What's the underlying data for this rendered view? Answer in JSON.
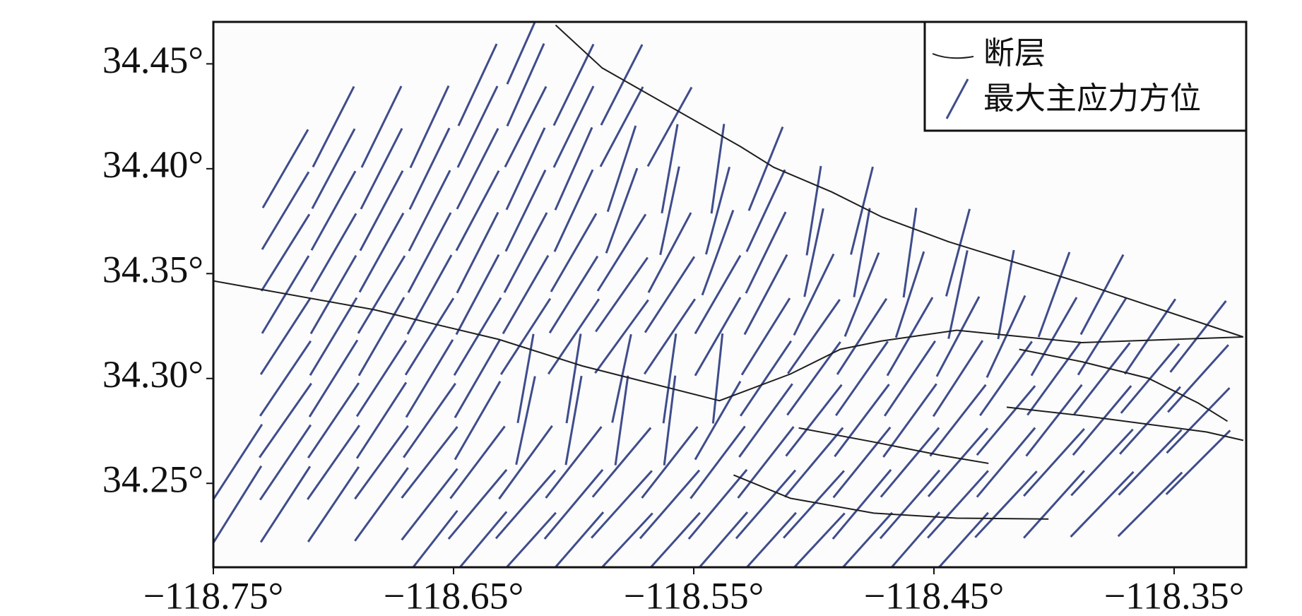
{
  "chart_data": {
    "type": "line",
    "xlim": [
      -118.75,
      -118.32
    ],
    "ylim": [
      34.21,
      34.47
    ],
    "xticks": [
      {
        "value": -118.75,
        "label": "−118.75°"
      },
      {
        "value": -118.65,
        "label": "−118.65°"
      },
      {
        "value": -118.55,
        "label": "−118.55°"
      },
      {
        "value": -118.45,
        "label": "−118.45°"
      },
      {
        "value": -118.35,
        "label": "−118.35°"
      }
    ],
    "yticks": [
      {
        "value": 34.25,
        "label": "34.25°"
      },
      {
        "value": 34.3,
        "label": "34.30°"
      },
      {
        "value": 34.35,
        "label": "34.35°"
      },
      {
        "value": 34.4,
        "label": "34.40°"
      },
      {
        "value": 34.45,
        "label": "34.45°"
      }
    ],
    "legend": "upper right",
    "series": [
      {
        "name": "断层",
        "color": "#1e1e1e",
        "x": [
          -118.6075,
          -118.5881,
          -118.5306,
          -118.5167,
          -118.4925,
          -118.4717,
          -118.4439,
          -118.3885,
          -118.3212,
          null,
          -118.7503,
          -118.6831,
          -118.6311,
          -118.5964,
          -118.5393,
          -118.5098,
          -118.489,
          -118.4717,
          -118.4405,
          -118.3885,
          -118.3212,
          null,
          -118.4145,
          -118.3885,
          -118.3607,
          -118.34,
          -118.3278,
          null,
          -118.4197,
          -118.3885,
          -118.3365,
          -118.3212,
          null,
          -118.5063,
          -118.4751,
          -118.4474,
          -118.4273,
          null,
          -118.5334,
          -118.5098,
          -118.4751,
          -118.4405,
          -118.4023
        ],
        "y": [
          34.4685,
          34.448,
          34.4106,
          34.4007,
          34.3889,
          34.377,
          34.3652,
          34.3455,
          34.3198,
          null,
          34.3466,
          34.3328,
          34.3186,
          34.306,
          34.2894,
          34.3021,
          34.3139,
          34.3179,
          34.323,
          34.3171,
          34.3198,
          null,
          34.3139,
          34.308,
          34.3001,
          34.2883,
          34.2796,
          null,
          34.2863,
          34.2823,
          34.2745,
          34.2705,
          null,
          34.2764,
          34.2697,
          34.2634,
          34.2595,
          null,
          34.254,
          34.2429,
          34.2358,
          34.2334,
          34.233
        ]
      },
      {
        "name": "最大主应力方位",
        "color": "#3f4d8c",
        "x": [
          -118.74,
          -118.72,
          -118.7,
          -118.68,
          -118.66,
          -118.64,
          -118.62,
          -118.6,
          -118.58,
          -118.56,
          -118.54,
          -118.52,
          -118.5,
          -118.48,
          -118.46,
          -118.44,
          -118.42,
          -118.4,
          -118.38,
          -118.36,
          -118.34
        ],
        "y": [
          34.46,
          34.44,
          34.42,
          34.4,
          34.38,
          34.36,
          34.34,
          34.32,
          34.3,
          34.28,
          34.26,
          34.24,
          34.22
        ],
        "values": [
          [
            null,
            null,
            null,
            null,
            null,
            null,
            24,
            null,
            null,
            null,
            null,
            null,
            null,
            null,
            null,
            null,
            null,
            null,
            null,
            null,
            null
          ],
          [
            null,
            null,
            null,
            null,
            null,
            25,
            24,
            26,
            27,
            null,
            null,
            null,
            null,
            null,
            null,
            null,
            null,
            null,
            null,
            null,
            null
          ],
          [
            null,
            null,
            27,
            26,
            25,
            26,
            27,
            26,
            28,
            29,
            null,
            null,
            null,
            null,
            null,
            null,
            null,
            null,
            null,
            null,
            null
          ],
          [
            null,
            30,
            28,
            27,
            26,
            27,
            25,
            24,
            18,
            10,
            8,
            22,
            null,
            null,
            null,
            null,
            null,
            null,
            null,
            null,
            null
          ],
          [
            null,
            31,
            29,
            28,
            27,
            28,
            26,
            25,
            20,
            12,
            15,
            25,
            9,
            14,
            null,
            null,
            null,
            null,
            null,
            null,
            null
          ],
          [
            null,
            32,
            30,
            29,
            28,
            27,
            28,
            30,
            32,
            28,
            20,
            26,
            12,
            10,
            8,
            15,
            null,
            null,
            null,
            null,
            null
          ],
          [
            null,
            31,
            30,
            31,
            29,
            28,
            30,
            32,
            35,
            33,
            30,
            28,
            26,
            22,
            18,
            12,
            10,
            20,
            28,
            null,
            null
          ],
          [
            null,
            33,
            31,
            30,
            32,
            31,
            33,
            34,
            36,
            34,
            30,
            32,
            35,
            33,
            30,
            28,
            25,
            30,
            32,
            34,
            38
          ],
          [
            null,
            34,
            32,
            33,
            31,
            30,
            10,
            9,
            12,
            8,
            6,
            34,
            36,
            35,
            34,
            33,
            35,
            36,
            38,
            40,
            42
          ],
          [
            null,
            35,
            34,
            33,
            35,
            30,
            12,
            10,
            8,
            7,
            30,
            36,
            38,
            37,
            36,
            38,
            40,
            38,
            40,
            42,
            44
          ],
          [
            33,
            34,
            35,
            36,
            38,
            37,
            36,
            38,
            40,
            38,
            37,
            38,
            40,
            39,
            40,
            41,
            40,
            42,
            43,
            44,
            45
          ],
          [
            32,
            33,
            34,
            36,
            38,
            40,
            41,
            40,
            42,
            41,
            40,
            41,
            42,
            40,
            41,
            42,
            43,
            42,
            44,
            45,
            null
          ],
          [
            null,
            null,
            null,
            null,
            38,
            40,
            42,
            41,
            43,
            42,
            41,
            42,
            43,
            42,
            41,
            42,
            null,
            null,
            null,
            null,
            null
          ]
        ]
      }
    ]
  }
}
